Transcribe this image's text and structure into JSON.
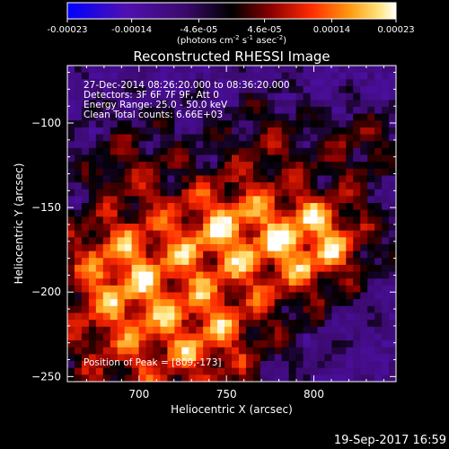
{
  "colorbar": {
    "tick_labels": [
      "-0.00023",
      "-0.00014",
      "-4.6e-05",
      "4.6e-05",
      "0.00014",
      "0.00023"
    ],
    "tick_values": [
      -0.00023,
      -0.00014,
      -4.6e-05,
      4.6e-05,
      0.00014,
      0.00023
    ],
    "range": [
      -0.00023,
      0.00023
    ],
    "units_prefix": "(photons cm",
    "units_exp1": "-2",
    "units_mid": " s",
    "units_exp2": "-1",
    "units_mid2": " asec",
    "units_exp3": "-2",
    "units_suffix": ")",
    "colors": [
      "#0000ff",
      "#4a0fa0",
      "#000000",
      "#8a0000",
      "#ff2000",
      "#ff8c00",
      "#ffe060",
      "#ffffff"
    ]
  },
  "info": {
    "line1": "27-Dec-2014 08:26:20.000 to 08:36:20.000",
    "line2": "Detectors: 3F 6F 7F 9F, Att 0",
    "line3": "Energy Range: 25.0 - 50.0 keV",
    "line4": "Clean    Total counts: 6.66E+03",
    "peak": "Position of Peak = [809,-173]"
  },
  "footer": {
    "timestamp": "19-Sep-2017 16:59"
  },
  "chart_data": {
    "type": "heatmap",
    "title": "Reconstructed RHESSI Image",
    "xlabel": "Heliocentric X (arcsec)",
    "ylabel": "Heliocentric Y (arcsec)",
    "xlim": [
      659,
      847
    ],
    "ylim": [
      -253,
      -66
    ],
    "xticks": [
      700,
      750,
      800
    ],
    "yticks": [
      -100,
      -150,
      -200,
      -250
    ],
    "xtick_labels": [
      "700",
      "750",
      "800"
    ],
    "ytick_labels": [
      "−100",
      "−150",
      "−200",
      "−250"
    ],
    "peak": [
      809,
      -173
    ],
    "grid": false
  }
}
